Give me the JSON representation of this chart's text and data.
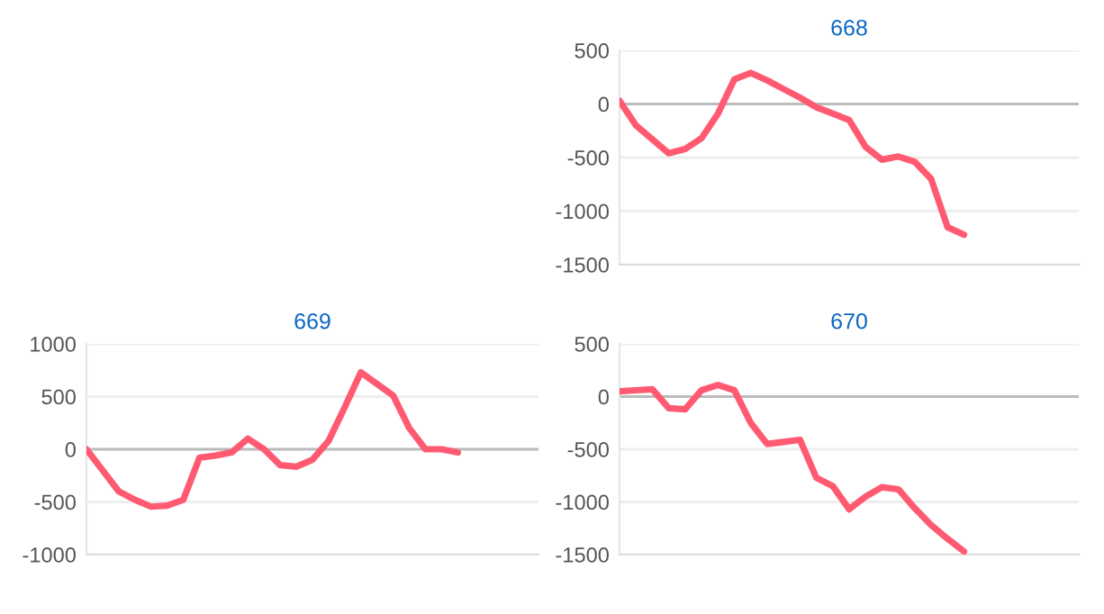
{
  "chart_data": [
    {
      "type": "line",
      "title": "668",
      "categories": [
        null,
        null,
        null,
        null,
        null,
        null,
        null,
        null,
        null,
        null,
        null,
        null,
        null,
        null,
        null,
        null,
        null,
        null,
        null,
        null,
        null,
        null,
        null,
        null,
        null,
        null,
        null,
        null,
        null
      ],
      "color": "#ff5a72",
      "marker": "none",
      "grid": "y",
      "ylim": [
        -1500,
        500
      ],
      "yticks": [
        500,
        0,
        -500,
        -1000,
        -1500
      ],
      "values": [
        30,
        -200,
        -330,
        -460,
        -420,
        -320,
        -90,
        230,
        290,
        220,
        140,
        60,
        -30,
        -90,
        -150,
        -400,
        -520,
        -490,
        -540,
        -700,
        -1150,
        -1220,
        null,
        null,
        null,
        null,
        null,
        null,
        null
      ]
    },
    {
      "type": "line",
      "title": "669",
      "categories": [
        null,
        null,
        null,
        null,
        null,
        null,
        null,
        null,
        null,
        null,
        null,
        null,
        null,
        null,
        null,
        null,
        null,
        null,
        null,
        null,
        null,
        null,
        null,
        null,
        null,
        null,
        null,
        null,
        null
      ],
      "color": "#ff5a72",
      "marker": "none",
      "grid": "y",
      "ylim": [
        -1000,
        1000
      ],
      "yticks": [
        1000,
        500,
        0,
        -500,
        -1000
      ],
      "values": [
        0,
        -200,
        -400,
        -480,
        -545,
        -535,
        -480,
        -80,
        -60,
        -30,
        100,
        0,
        -150,
        -165,
        -100,
        80,
        400,
        730,
        620,
        510,
        200,
        0,
        0,
        -30,
        null,
        null,
        null,
        null,
        null
      ]
    },
    {
      "type": "line",
      "title": "670",
      "categories": [
        null,
        null,
        null,
        null,
        null,
        null,
        null,
        null,
        null,
        null,
        null,
        null,
        null,
        null,
        null,
        null,
        null,
        null,
        null,
        null,
        null,
        null,
        null,
        null,
        null,
        null,
        null,
        null,
        null
      ],
      "color": "#ff5a72",
      "marker": "none",
      "grid": "y",
      "ylim": [
        -1500,
        500
      ],
      "yticks": [
        500,
        0,
        -500,
        -1000,
        -1500
      ],
      "values": [
        50,
        60,
        70,
        -110,
        -120,
        60,
        110,
        60,
        -250,
        -450,
        -430,
        -410,
        -770,
        -850,
        -1070,
        -950,
        -860,
        -880,
        -1060,
        -1220,
        -1350,
        -1470,
        null,
        null,
        null,
        null,
        null,
        null,
        null
      ]
    }
  ]
}
